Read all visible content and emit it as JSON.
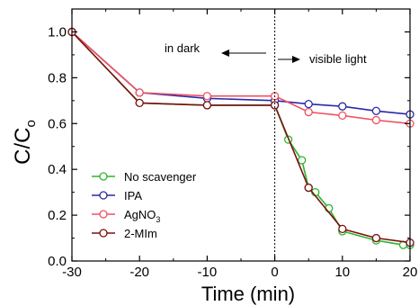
{
  "chart_data": {
    "type": "line",
    "xlabel": "Time (min)",
    "ylabel_main": "C/C",
    "ylabel_sub": "o",
    "xlim": [
      -30,
      20
    ],
    "ylim": [
      0.0,
      1.1
    ],
    "x_ticks": [
      -30,
      -20,
      -10,
      0,
      10,
      20
    ],
    "y_ticks": [
      0.0,
      0.2,
      0.4,
      0.6,
      0.8,
      1.0
    ],
    "x_tick_labels": [
      "-30",
      "-20",
      "-10",
      "0",
      "10",
      "20"
    ],
    "y_tick_labels": [
      "0.0",
      "0.2",
      "0.4",
      "0.6",
      "0.8",
      "1.0"
    ],
    "annotations": {
      "dark": "in dark",
      "light": "visible light",
      "divider_x": 0
    },
    "series": [
      {
        "name": "No scavenger",
        "color": "#2db52d",
        "x": [
          -30,
          -20,
          -10,
          0,
          2,
          4,
          5,
          6,
          8,
          10,
          15,
          19,
          20
        ],
        "y": [
          1.0,
          0.69,
          0.68,
          0.68,
          0.53,
          0.44,
          0.32,
          0.3,
          0.23,
          0.13,
          0.09,
          0.07,
          0.07
        ]
      },
      {
        "name": "IPA",
        "color": "#2a2aa8",
        "x": [
          -30,
          -20,
          -10,
          0,
          5,
          10,
          15,
          20
        ],
        "y": [
          1.0,
          0.735,
          0.71,
          0.7,
          0.685,
          0.675,
          0.655,
          0.64
        ]
      },
      {
        "name_main": "AgNO",
        "name_sub": "3",
        "color": "#f05060",
        "x": [
          -30,
          -20,
          -10,
          0,
          5,
          10,
          15,
          20
        ],
        "y": [
          1.0,
          0.735,
          0.72,
          0.72,
          0.65,
          0.635,
          0.615,
          0.6
        ]
      },
      {
        "name": "2-MIm",
        "color": "#7a1010",
        "x": [
          -30,
          -20,
          -10,
          0,
          5,
          10,
          15,
          20
        ],
        "y": [
          1.0,
          0.69,
          0.68,
          0.68,
          0.32,
          0.14,
          0.1,
          0.08
        ]
      }
    ]
  }
}
